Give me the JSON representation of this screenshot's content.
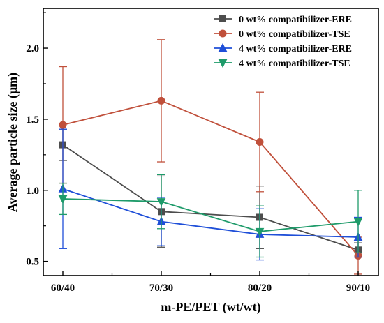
{
  "chart_data": {
    "type": "line",
    "xlabel": "m-PE/PET (wt/wt)",
    "ylabel": "Average particle size (μm)",
    "categories": [
      "60/40",
      "70/30",
      "80/20",
      "90/10"
    ],
    "ylim": [
      0.4,
      2.28
    ],
    "yticks": [
      0.5,
      1.0,
      1.5,
      2.0
    ],
    "ytick_labels": [
      "0.5",
      "1.0",
      "1.5",
      "2.0"
    ],
    "grid": false,
    "legend_position": "top-right",
    "series": [
      {
        "name": "0 wt% compatibilizer-ERE",
        "color": "#4d4d4d",
        "marker": "square",
        "values": [
          1.32,
          0.85,
          0.81,
          0.58
        ],
        "errors": [
          0.11,
          0.25,
          0.22,
          0.05
        ]
      },
      {
        "name": "0 wt% compatibilizer-TSE",
        "color": "#c0503b",
        "marker": "circle",
        "values": [
          1.46,
          1.63,
          1.34,
          0.54
        ],
        "errors": [
          0.41,
          0.43,
          0.35,
          0.13
        ]
      },
      {
        "name": "4 wt% compatibilizer-ERE",
        "color": "#1f4fd8",
        "marker": "triangle-up",
        "values": [
          1.01,
          0.78,
          0.69,
          0.67
        ],
        "errors": [
          0.42,
          0.17,
          0.18,
          0.14
        ]
      },
      {
        "name": "4 wt% compatibilizer-TSE",
        "color": "#1e9b6a",
        "marker": "triangle-down",
        "values": [
          0.94,
          0.92,
          0.71,
          0.78
        ],
        "errors": [
          0.11,
          0.19,
          0.18,
          0.22
        ]
      }
    ]
  }
}
